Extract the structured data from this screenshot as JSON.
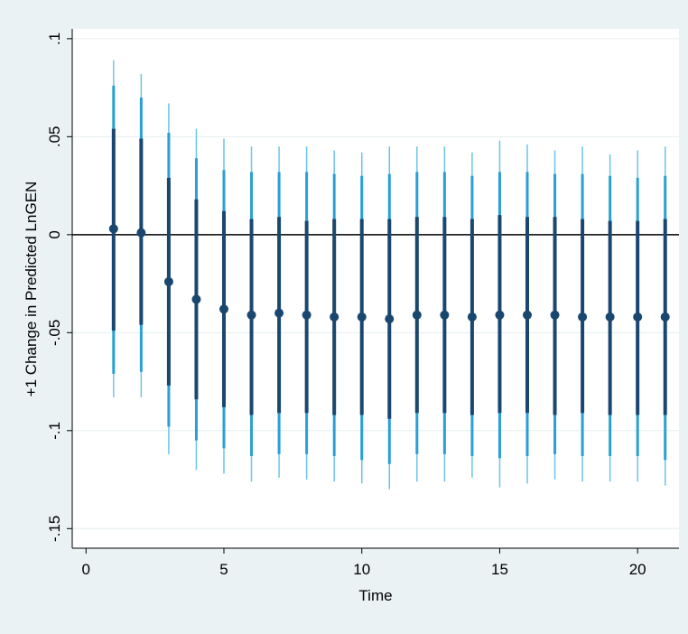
{
  "chart_data": {
    "type": "scatter",
    "title": "",
    "xlabel": "Time",
    "ylabel": "+1 Change in Predicted LnGEN",
    "xlim": [
      -0.5,
      21.5
    ],
    "ylim": [
      -0.16,
      0.105
    ],
    "xticks": [
      0,
      5,
      10,
      15,
      20
    ],
    "xtick_labels": [
      "0",
      "5",
      "10",
      "15",
      "20"
    ],
    "yticks": [
      -0.15,
      -0.1,
      -0.05,
      0,
      0.05,
      0.1
    ],
    "ytick_labels": [
      "-.15",
      "-.1",
      "-.05",
      "0",
      ".05",
      ".1"
    ],
    "grid": true,
    "reference_line_y": 0,
    "colors": {
      "background": "#eaf2f3",
      "plot_background": "#ffffff",
      "point": "#1a476f",
      "inner_interval": "#1a476f",
      "middle_interval": "#2a9fd6",
      "outer_interval": "#6cc4ea",
      "grid": "#e6eef0"
    },
    "x": [
      1,
      2,
      3,
      4,
      5,
      6,
      7,
      8,
      9,
      10,
      11,
      12,
      13,
      14,
      15,
      16,
      17,
      18,
      19,
      20,
      21
    ],
    "estimate": [
      0.003,
      0.001,
      -0.024,
      -0.033,
      -0.038,
      -0.041,
      -0.04,
      -0.041,
      -0.042,
      -0.042,
      -0.043,
      -0.041,
      -0.041,
      -0.042,
      -0.041,
      -0.041,
      -0.041,
      -0.042,
      -0.042,
      -0.042,
      -0.042
    ],
    "inner_interval": [
      [
        -0.049,
        0.054
      ],
      [
        -0.046,
        0.049
      ],
      [
        -0.077,
        0.029
      ],
      [
        -0.084,
        0.018
      ],
      [
        -0.088,
        0.012
      ],
      [
        -0.092,
        0.008
      ],
      [
        -0.091,
        0.009
      ],
      [
        -0.091,
        0.007
      ],
      [
        -0.092,
        0.008
      ],
      [
        -0.092,
        0.008
      ],
      [
        -0.094,
        0.008
      ],
      [
        -0.091,
        0.009
      ],
      [
        -0.091,
        0.009
      ],
      [
        -0.092,
        0.008
      ],
      [
        -0.091,
        0.01
      ],
      [
        -0.091,
        0.009
      ],
      [
        -0.092,
        0.009
      ],
      [
        -0.091,
        0.008
      ],
      [
        -0.092,
        0.007
      ],
      [
        -0.092,
        0.007
      ],
      [
        -0.092,
        0.008
      ]
    ],
    "middle_interval": [
      [
        -0.071,
        0.076
      ],
      [
        -0.07,
        0.07
      ],
      [
        -0.098,
        0.052
      ],
      [
        -0.105,
        0.039
      ],
      [
        -0.109,
        0.033
      ],
      [
        -0.113,
        0.032
      ],
      [
        -0.112,
        0.032
      ],
      [
        -0.112,
        0.032
      ],
      [
        -0.113,
        0.031
      ],
      [
        -0.115,
        0.03
      ],
      [
        -0.117,
        0.031
      ],
      [
        -0.112,
        0.032
      ],
      [
        -0.112,
        0.032
      ],
      [
        -0.113,
        0.03
      ],
      [
        -0.114,
        0.032
      ],
      [
        -0.113,
        0.032
      ],
      [
        -0.112,
        0.031
      ],
      [
        -0.113,
        0.031
      ],
      [
        -0.113,
        0.03
      ],
      [
        -0.113,
        0.029
      ],
      [
        -0.115,
        0.03
      ]
    ],
    "outer_interval": [
      [
        -0.083,
        0.089
      ],
      [
        -0.083,
        0.082
      ],
      [
        -0.112,
        0.067
      ],
      [
        -0.12,
        0.054
      ],
      [
        -0.122,
        0.049
      ],
      [
        -0.126,
        0.045
      ],
      [
        -0.124,
        0.045
      ],
      [
        -0.125,
        0.045
      ],
      [
        -0.126,
        0.043
      ],
      [
        -0.127,
        0.042
      ],
      [
        -0.13,
        0.045
      ],
      [
        -0.126,
        0.045
      ],
      [
        -0.126,
        0.045
      ],
      [
        -0.124,
        0.042
      ],
      [
        -0.129,
        0.048
      ],
      [
        -0.127,
        0.046
      ],
      [
        -0.125,
        0.043
      ],
      [
        -0.126,
        0.045
      ],
      [
        -0.126,
        0.041
      ],
      [
        -0.126,
        0.043
      ],
      [
        -0.128,
        0.045
      ]
    ]
  }
}
